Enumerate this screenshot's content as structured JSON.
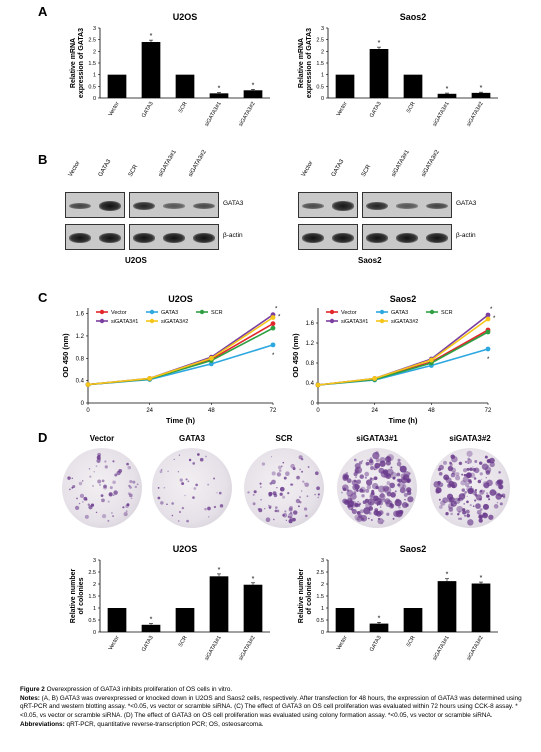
{
  "panel_letters": {
    "a": "A",
    "b": "B",
    "c": "C",
    "d": "D"
  },
  "colors": {
    "vector": "#e3262b",
    "gata3": "#2ca7df",
    "scr": "#2ea043",
    "sigata3_1": "#7b3fa0",
    "sigata3_2": "#f5c518",
    "bar": "#000000",
    "colony": "#6a3a8c"
  },
  "panel_a": {
    "ylabel_line1": "Relative mRNA",
    "ylabel_line2": "expression of GATA3",
    "charts": [
      {
        "title": "U2OS",
        "categories": [
          "Vector",
          "GATA3",
          "SCR",
          "siGATA3#1",
          "siGATA3#2"
        ],
        "values": [
          1.0,
          2.4,
          1.0,
          0.2,
          0.33
        ],
        "errors": [
          0,
          0.08,
          0,
          0.03,
          0.04
        ],
        "stars": [
          "",
          "*",
          "",
          "*",
          "*"
        ],
        "ylim": [
          0,
          3
        ],
        "yticks": [
          "0",
          "0.5",
          "1",
          "1.5",
          "2",
          "2.5",
          "3"
        ]
      },
      {
        "title": "Saos2",
        "categories": [
          "Vector",
          "GATA3",
          "SCR",
          "siGATA3#1",
          "siGATA3#2"
        ],
        "values": [
          1.0,
          2.1,
          1.0,
          0.18,
          0.22
        ],
        "errors": [
          0,
          0.08,
          0,
          0.03,
          0.03
        ],
        "stars": [
          "",
          "*",
          "",
          "*",
          "*"
        ],
        "ylim": [
          0,
          3
        ],
        "yticks": [
          "0",
          "0.5",
          "1",
          "1.5",
          "2",
          "2.5",
          "3"
        ]
      }
    ]
  },
  "panel_b": {
    "lanes": [
      "Vector",
      "GATA3",
      "SCR",
      "siGATA3#1",
      "siGATA3#2"
    ],
    "row_labels": [
      "GATA3",
      "β-actin"
    ],
    "titles": [
      "U2OS",
      "Saos2"
    ],
    "band_intensity": [
      [
        0.6,
        1.0,
        0.85,
        0.45,
        0.55
      ],
      [
        1.0,
        1.0,
        1.0,
        1.0,
        1.0
      ]
    ],
    "band_intensity_saos2": [
      [
        0.55,
        0.95,
        0.85,
        0.45,
        0.6
      ],
      [
        1.0,
        1.0,
        1.0,
        1.0,
        1.0
      ]
    ]
  },
  "panel_c": {
    "ylabel": "OD 450 (nm)",
    "xlabel": "Time (h)",
    "legend": [
      "Vector",
      "GATA3",
      "SCR",
      "siGATA3#1",
      "siGATA3#2"
    ],
    "chart_data": [
      {
        "type": "line",
        "title": "U2OS",
        "x": [
          0,
          24,
          48,
          72
        ],
        "xticks": [
          "0",
          "24",
          "48",
          "72"
        ],
        "yticks": [
          "0",
          "0.4",
          "0.8",
          "1.2",
          "1.6"
        ],
        "ylim": [
          0,
          1.7
        ],
        "series": [
          {
            "name": "Vector",
            "values": [
              0.33,
              0.43,
              0.78,
              1.42
            ]
          },
          {
            "name": "GATA3",
            "values": [
              0.33,
              0.42,
              0.7,
              1.04
            ]
          },
          {
            "name": "SCR",
            "values": [
              0.33,
              0.43,
              0.76,
              1.34
            ]
          },
          {
            "name": "siGATA3#1",
            "values": [
              0.33,
              0.44,
              0.82,
              1.58
            ]
          },
          {
            "name": "siGATA3#2",
            "values": [
              0.33,
              0.44,
              0.8,
              1.53
            ]
          }
        ]
      },
      {
        "type": "line",
        "title": "Saos2",
        "x": [
          0,
          24,
          48,
          72
        ],
        "xticks": [
          "0",
          "24",
          "48",
          "72"
        ],
        "yticks": [
          "0",
          "0.4",
          "0.8",
          "1.2",
          "1.6"
        ],
        "ylim": [
          0,
          1.9
        ],
        "series": [
          {
            "name": "Vector",
            "values": [
              0.36,
              0.48,
              0.82,
              1.46
            ]
          },
          {
            "name": "GATA3",
            "values": [
              0.36,
              0.46,
              0.75,
              1.08
            ]
          },
          {
            "name": "SCR",
            "values": [
              0.36,
              0.47,
              0.8,
              1.42
            ]
          },
          {
            "name": "siGATA3#1",
            "values": [
              0.36,
              0.49,
              0.88,
              1.76
            ]
          },
          {
            "name": "siGATA3#2",
            "values": [
              0.36,
              0.49,
              0.86,
              1.68
            ]
          }
        ]
      }
    ]
  },
  "panel_d": {
    "dish_labels": [
      "Vector",
      "GATA3",
      "SCR",
      "siGATA3#1",
      "siGATA3#2"
    ],
    "dish_density": [
      0.25,
      0.08,
      0.3,
      0.9,
      0.75
    ],
    "ylabel_line1": "Relative number",
    "ylabel_line2": "of colonies",
    "charts": [
      {
        "title": "U2OS",
        "categories": [
          "Vector",
          "GATA3",
          "SCR",
          "siGATA3#1",
          "siGATA3#2"
        ],
        "values": [
          1.0,
          0.3,
          1.0,
          2.32,
          1.97
        ],
        "errors": [
          0,
          0.05,
          0,
          0.1,
          0.08
        ],
        "stars": [
          "",
          "*",
          "",
          "*",
          "*"
        ],
        "ylim": [
          0,
          3
        ],
        "yticks": [
          "0",
          "0.5",
          "1",
          "1.5",
          "2",
          "2.5",
          "3"
        ]
      },
      {
        "title": "Saos2",
        "categories": [
          "Vector",
          "GATA3",
          "SCR",
          "siGATA3#1",
          "siGATA3#2"
        ],
        "values": [
          1.0,
          0.35,
          1.0,
          2.12,
          2.02
        ],
        "errors": [
          0,
          0.05,
          0,
          0.1,
          0.06
        ],
        "stars": [
          "",
          "*",
          "",
          "*",
          "*"
        ],
        "ylim": [
          0,
          3
        ],
        "yticks": [
          "0",
          "0.5",
          "1",
          "1.5",
          "2",
          "2.5",
          "3"
        ]
      }
    ]
  },
  "caption": {
    "fig_label": "Figure 2",
    "fig_title": "Overexpression of GATA3 inhibits proliferation of OS cells in vitro.",
    "notes_label": "Notes:",
    "notes_text": "(A, B) GATA3 was overexpressed or knocked down in U2OS and Saos2 cells, respectively. After transfection for 48 hours, the expression of GATA3 was determined using qRT-PCR and western blotting assay. *<0.05, vs vector or scramble siRNA. (C) The effect of GATA3 on OS cell proliferation was evaluated within 72 hours using CCK-8 assay. *<0.05, vs vector or scramble siRNA. (D) The effect of GATA3 on OS cell proliferation was evaluated using colony formation assay. *<0.05, vs vector or scramble siRNA.",
    "abbr_label": "Abbreviations:",
    "abbr_text": "qRT-PCR, quantitative reverse-transcription PCR; OS, osteosarcoma."
  }
}
